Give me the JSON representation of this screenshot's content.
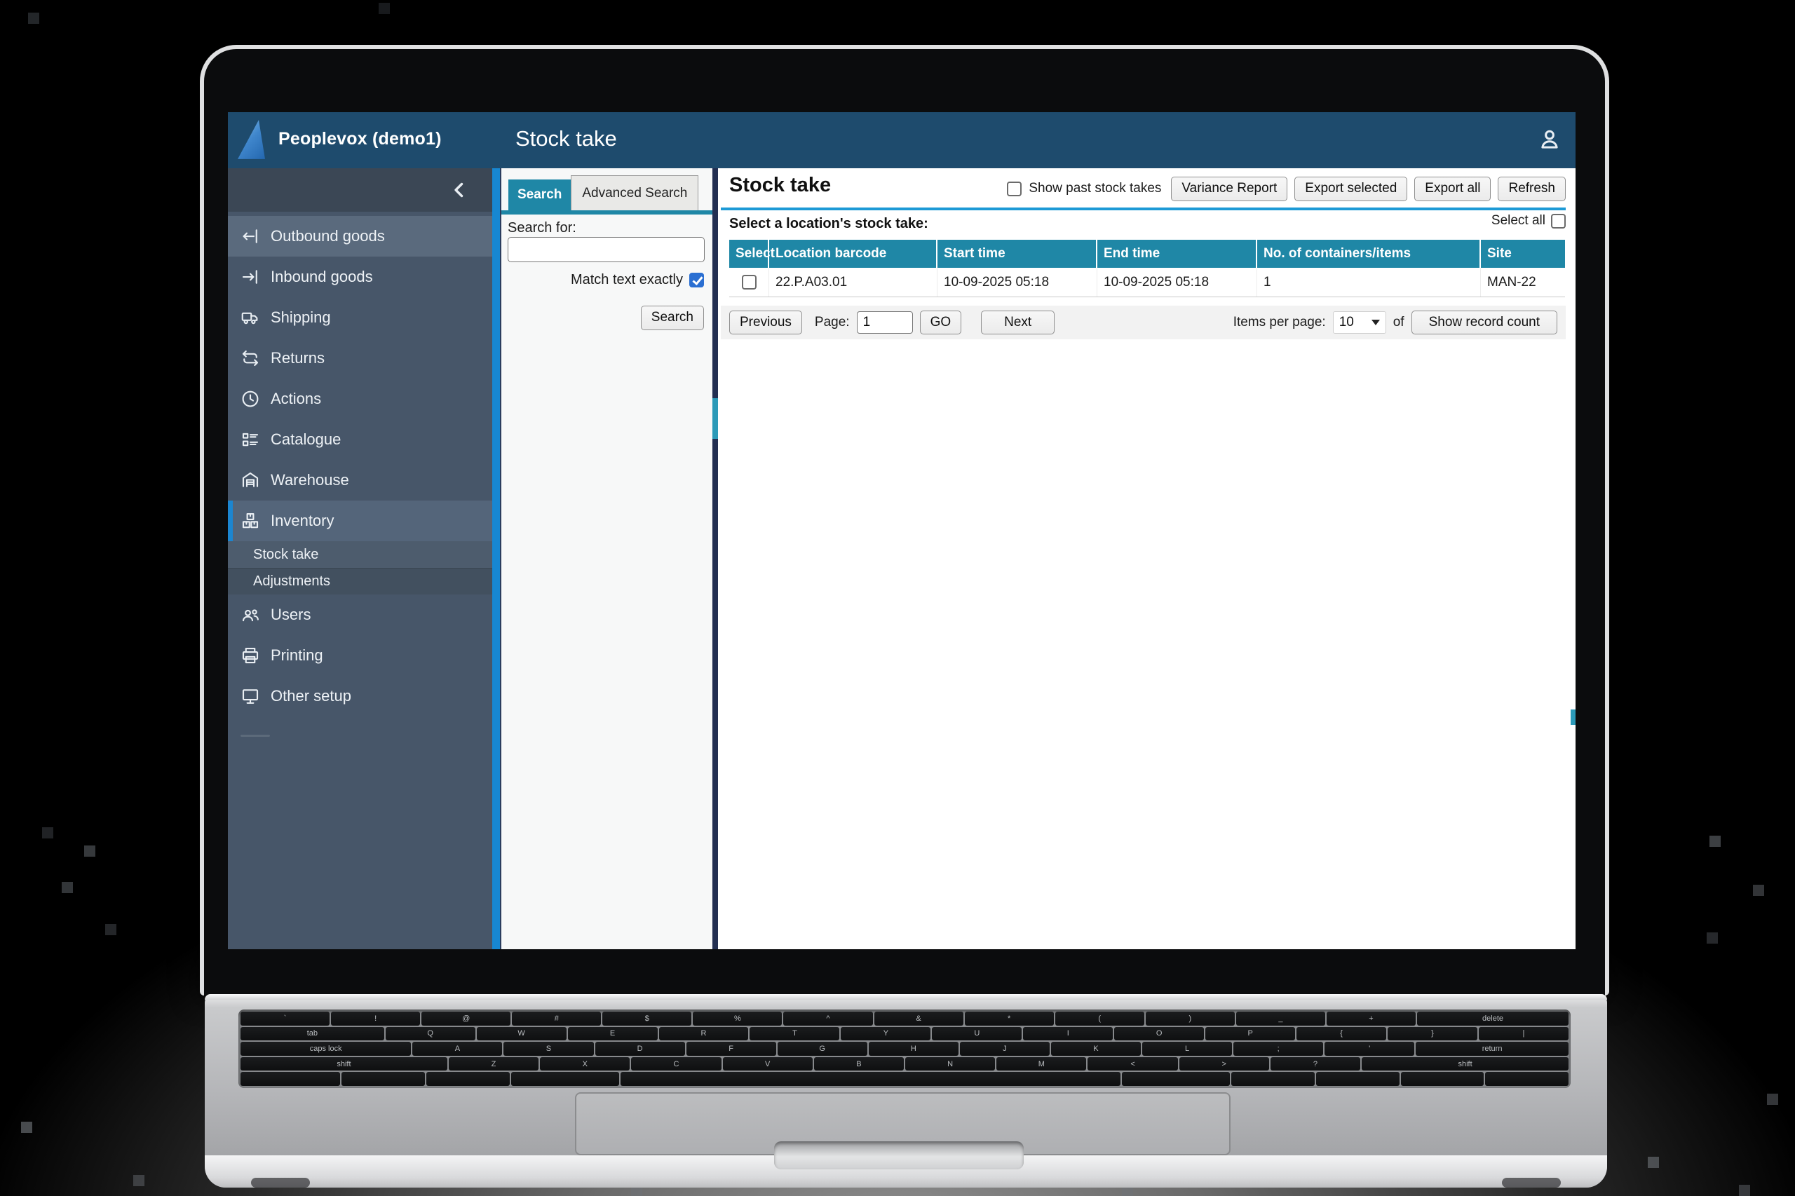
{
  "colors": {
    "header_blue": "#1e4b6d",
    "sidebar_slate": "#475669",
    "accent_teal": "#1f87a6",
    "rule_blue": "#1d9ad6",
    "scrollbar_blue": "#1787d2",
    "divider_navy": "#232f52",
    "checkbox_blue": "#2a6fd2"
  },
  "app": {
    "brand": "Peoplevox (demo1)",
    "header_title": "Stock take"
  },
  "sidebar": {
    "items": [
      {
        "label": "Outbound goods",
        "icon": "outbound-arrow-icon"
      },
      {
        "label": "Inbound goods",
        "icon": "inbound-arrow-icon"
      },
      {
        "label": "Shipping",
        "icon": "truck-icon"
      },
      {
        "label": "Returns",
        "icon": "repeat-icon"
      },
      {
        "label": "Actions",
        "icon": "clock-icon"
      },
      {
        "label": "Catalogue",
        "icon": "list-icon"
      },
      {
        "label": "Warehouse",
        "icon": "warehouse-icon"
      },
      {
        "label": "Inventory",
        "icon": "boxes-icon"
      },
      {
        "label": "Stock take"
      },
      {
        "label": "Adjustments"
      },
      {
        "label": "Users",
        "icon": "users-icon"
      },
      {
        "label": "Printing",
        "icon": "printer-icon"
      },
      {
        "label": "Other setup",
        "icon": "monitor-icon"
      }
    ]
  },
  "search_panel": {
    "tab_search": "Search",
    "tab_advanced": "Advanced Search",
    "search_for_label": "Search for:",
    "search_value": "",
    "match_text_label": "Match text exactly",
    "match_text_checked": true,
    "search_button_label": "Search"
  },
  "main": {
    "title": "Stock take",
    "show_past_label": "Show past stock takes",
    "show_past_checked": false,
    "variance_button": "Variance Report",
    "export_selected_button": "Export selected",
    "export_all_button": "Export all",
    "refresh_button": "Refresh",
    "select_location_label": "Select a location's stock take:",
    "select_all_label": "Select all",
    "select_all_checked": false,
    "table": {
      "columns": [
        "Select",
        "Location barcode",
        "Start time",
        "End time",
        "No. of containers/items",
        "Site"
      ],
      "rows": [
        {
          "selected": false,
          "location_barcode": "22.P.A03.01",
          "start_time": "10-09-2025 05:18",
          "end_time": "10-09-2025 05:18",
          "containers_items": "1",
          "site": "MAN-22"
        }
      ]
    },
    "pagination": {
      "previous_button": "Previous",
      "page_label": "Page:",
      "page_value": "1",
      "go_button": "GO",
      "next_button": "Next",
      "items_per_page_label": "Items per page:",
      "items_per_page_value": "10",
      "of_label": "of",
      "show_record_count_button": "Show record count"
    }
  },
  "laptop": {
    "keyboard": {
      "rows": [
        [
          [
            "`",
            1
          ],
          [
            "!",
            1
          ],
          [
            "@",
            1
          ],
          [
            "#",
            1
          ],
          [
            "$",
            1
          ],
          [
            "%",
            1
          ],
          [
            "^",
            1
          ],
          [
            "&",
            1
          ],
          [
            "*",
            1
          ],
          [
            "(",
            1
          ],
          [
            ")",
            1
          ],
          [
            "_",
            1
          ],
          [
            "+",
            1
          ],
          [
            "delete",
            1.7
          ]
        ],
        [
          [
            "tab",
            1.6
          ],
          [
            "Q",
            1
          ],
          [
            "W",
            1
          ],
          [
            "E",
            1
          ],
          [
            "R",
            1
          ],
          [
            "T",
            1
          ],
          [
            "Y",
            1
          ],
          [
            "U",
            1
          ],
          [
            "I",
            1
          ],
          [
            "O",
            1
          ],
          [
            "P",
            1
          ],
          [
            "{",
            1
          ],
          [
            "}",
            1
          ],
          [
            "|",
            1
          ]
        ],
        [
          [
            "caps lock",
            1.9
          ],
          [
            "A",
            1
          ],
          [
            "S",
            1
          ],
          [
            "D",
            1
          ],
          [
            "F",
            1
          ],
          [
            "G",
            1
          ],
          [
            "H",
            1
          ],
          [
            "J",
            1
          ],
          [
            "K",
            1
          ],
          [
            "L",
            1
          ],
          [
            ";",
            1
          ],
          [
            "'",
            1
          ],
          [
            "return",
            1.7
          ]
        ],
        [
          [
            "shift",
            2.3
          ],
          [
            "Z",
            1
          ],
          [
            "X",
            1
          ],
          [
            "C",
            1
          ],
          [
            "V",
            1
          ],
          [
            "B",
            1
          ],
          [
            "N",
            1
          ],
          [
            "M",
            1
          ],
          [
            "<",
            1
          ],
          [
            ">",
            1
          ],
          [
            "?",
            1
          ],
          [
            "shift",
            2.3
          ]
        ],
        [
          [
            "",
            1.2
          ],
          [
            "",
            1
          ],
          [
            "",
            1
          ],
          [
            "",
            1.3
          ],
          [
            "",
            6
          ],
          [
            "",
            1.3
          ],
          [
            "",
            1
          ],
          [
            "",
            1
          ],
          [
            "",
            1
          ],
          [
            "",
            1
          ]
        ]
      ]
    }
  }
}
